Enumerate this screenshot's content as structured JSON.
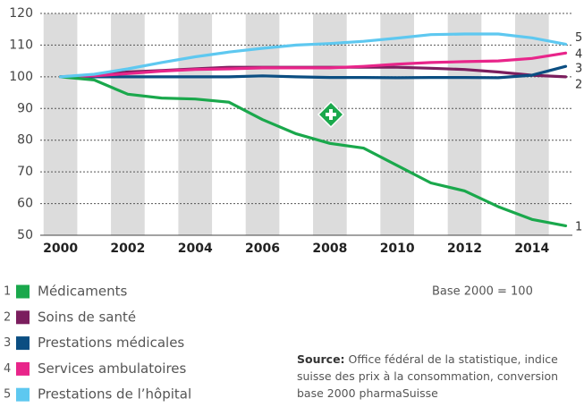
{
  "chart_data": {
    "type": "line",
    "x": [
      2000,
      2001,
      2002,
      2003,
      2004,
      2005,
      2006,
      2007,
      2008,
      2009,
      2010,
      2011,
      2012,
      2013,
      2014,
      2015
    ],
    "xlim": [
      1999.4,
      2015.2
    ],
    "xticks": [
      2000,
      2002,
      2004,
      2006,
      2008,
      2010,
      2012,
      2014
    ],
    "ylim": [
      50,
      120
    ],
    "yticks": [
      50,
      60,
      70,
      80,
      90,
      100,
      110,
      120
    ],
    "grid": true,
    "series": [
      {
        "label": "1",
        "name": "Médicaments",
        "color": "#1aa84c",
        "values": [
          100,
          99,
          94.5,
          93.3,
          93,
          92,
          86.5,
          82,
          79,
          77.5,
          72,
          66.5,
          64,
          59,
          55,
          53
        ]
      },
      {
        "label": "2",
        "name": "Soins de santé",
        "color": "#7b1e5e",
        "values": [
          100,
          100.5,
          101.5,
          102,
          102.5,
          103,
          103,
          103,
          103,
          103,
          103,
          102.7,
          102.3,
          101.5,
          100.5,
          100
        ]
      },
      {
        "label": "3",
        "name": "Prestations médicales",
        "color": "#0b4e82",
        "values": [
          100,
          100,
          100,
          100,
          100,
          100,
          100.3,
          100,
          99.8,
          99.8,
          99.7,
          99.8,
          99.8,
          99.7,
          100.5,
          103.3
        ]
      },
      {
        "label": "4",
        "name": "Services ambulatoires",
        "color": "#e8258a",
        "values": [
          100,
          100.3,
          101,
          101.8,
          102.3,
          102.5,
          102.8,
          102.8,
          102.8,
          103.3,
          104,
          104.5,
          104.8,
          105,
          105.8,
          107.5
        ]
      },
      {
        "label": "5",
        "name": "Prestations de l’hôpital",
        "color": "#5ec8f0",
        "values": [
          100,
          100.8,
          102.5,
          104.5,
          106.3,
          107.8,
          109,
          110,
          110.5,
          111.2,
          112.2,
          113.3,
          113.5,
          113.5,
          112.3,
          110.3
        ]
      }
    ],
    "base_note": "Base 2000 = 100",
    "source_label": "Source:",
    "source_text": "Office fédéral de la statistique, indice suisse des prix à la consommation, conversion base 2000 pharmaSuisse"
  }
}
